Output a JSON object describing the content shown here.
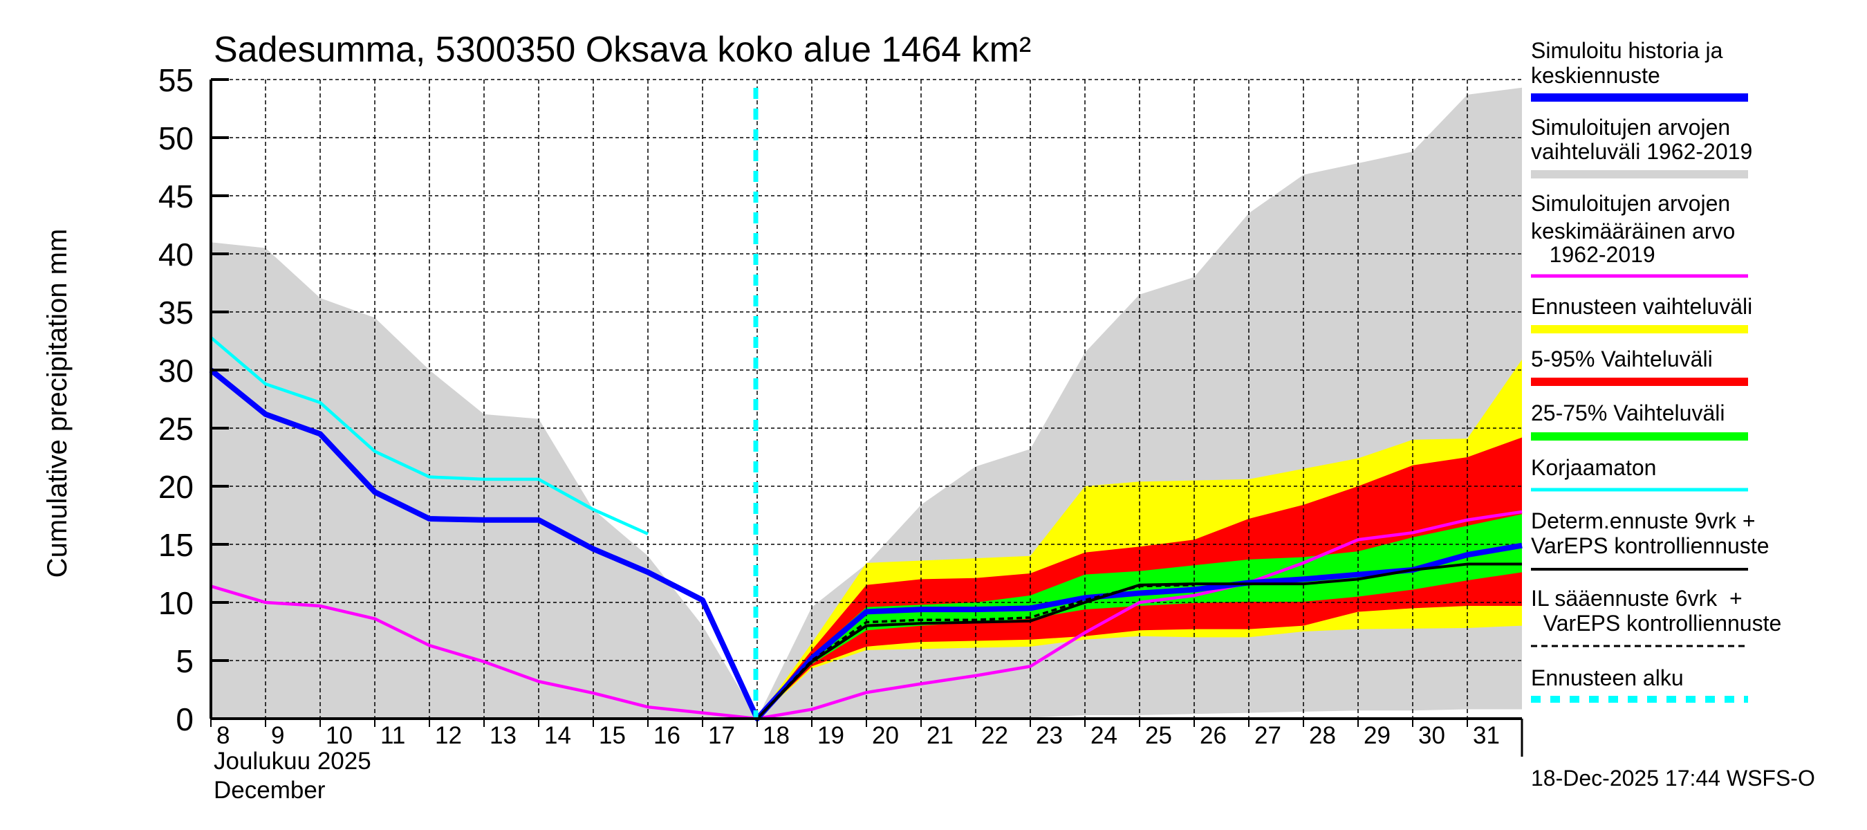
{
  "chart_data": {
    "type": "area",
    "title": "Sadesumma, 5300350 Oksava koko alue 1464 km²",
    "ylabel": "Cumulative precipitation   mm",
    "xlabel_lines": [
      "Joulukuu  2025",
      "December"
    ],
    "ylim": [
      0,
      55
    ],
    "xlim": [
      8,
      32
    ],
    "grid": true,
    "legend_position": "right",
    "yticks": [
      {
        "v": 0,
        "label": "0"
      },
      {
        "v": 5,
        "label": "5"
      },
      {
        "v": 10,
        "label": "10"
      },
      {
        "v": 15,
        "label": "15"
      },
      {
        "v": 20,
        "label": "20"
      },
      {
        "v": 25,
        "label": "25"
      },
      {
        "v": 30,
        "label": "30"
      },
      {
        "v": 35,
        "label": "35"
      },
      {
        "v": 40,
        "label": "40"
      },
      {
        "v": 45,
        "label": "45"
      },
      {
        "v": 50,
        "label": "50"
      },
      {
        "v": 55,
        "label": "55"
      }
    ],
    "xticks": [
      {
        "v": 8,
        "label": "8"
      },
      {
        "v": 9,
        "label": "9"
      },
      {
        "v": 10,
        "label": "10"
      },
      {
        "v": 11,
        "label": "11"
      },
      {
        "v": 12,
        "label": "12"
      },
      {
        "v": 13,
        "label": "13"
      },
      {
        "v": 14,
        "label": "14"
      },
      {
        "v": 15,
        "label": "15"
      },
      {
        "v": 16,
        "label": "16"
      },
      {
        "v": 17,
        "label": "17"
      },
      {
        "v": 18,
        "label": "18"
      },
      {
        "v": 19,
        "label": "19"
      },
      {
        "v": 20,
        "label": "20"
      },
      {
        "v": 21,
        "label": "21"
      },
      {
        "v": 22,
        "label": "22"
      },
      {
        "v": 23,
        "label": "23"
      },
      {
        "v": 24,
        "label": "24"
      },
      {
        "v": 25,
        "label": "25"
      },
      {
        "v": 26,
        "label": "26"
      },
      {
        "v": 27,
        "label": "27"
      },
      {
        "v": 28,
        "label": "28"
      },
      {
        "v": 29,
        "label": "29"
      },
      {
        "v": 30,
        "label": "30"
      },
      {
        "v": 31,
        "label": "31"
      }
    ],
    "forecast_start": 18,
    "bands": [
      {
        "name": "Simuloitujen arvojen vaihteluväli 1962-2019",
        "color": "#d3d3d3",
        "x": [
          8,
          9,
          10,
          11,
          12,
          13,
          14,
          15,
          16,
          17,
          18,
          19,
          20,
          21,
          22,
          23,
          24,
          25,
          26,
          27,
          28,
          29,
          30,
          31,
          32
        ],
        "upper": [
          41,
          40.5,
          36.2,
          34.5,
          30,
          26.2,
          25.8,
          18,
          14,
          8,
          0,
          9.6,
          13.3,
          18.4,
          21.7,
          23.2,
          31.5,
          36.5,
          38,
          43.5,
          46.8,
          47.8,
          48.8,
          53.7,
          54.3
        ],
        "lower": [
          0,
          0,
          0,
          0,
          0,
          0,
          0,
          0,
          0,
          0,
          0,
          0,
          0,
          0,
          0,
          0.1,
          0.3,
          0.3,
          0.4,
          0.5,
          0.6,
          0.7,
          0.7,
          0.8,
          0.8
        ]
      },
      {
        "name": "Ennusteen vaihteluväli",
        "color": "#ffff00",
        "x": [
          18,
          19,
          20,
          21,
          22,
          23,
          24,
          25,
          26,
          27,
          28,
          29,
          30,
          31,
          32
        ],
        "upper": [
          0,
          6.5,
          13.4,
          13.6,
          13.8,
          14,
          20,
          20.4,
          20.5,
          20.6,
          21.5,
          22.4,
          24,
          24.1,
          30.9
        ],
        "lower": [
          0,
          4.3,
          5.9,
          6.0,
          6.1,
          6.2,
          6.8,
          7.1,
          7.0,
          7.0,
          7.5,
          7.7,
          7.75,
          7.8,
          8.0
        ]
      },
      {
        "name": "5-95% Vaihteluväli",
        "color": "#ff0000",
        "x": [
          18,
          19,
          20,
          21,
          22,
          23,
          24,
          25,
          26,
          27,
          28,
          29,
          30,
          31,
          32
        ],
        "upper": [
          0,
          5.9,
          11.5,
          12,
          12.1,
          12.5,
          14.3,
          14.8,
          15.4,
          17.2,
          18.4,
          20,
          21.8,
          22.5,
          24.2
        ],
        "lower": [
          0,
          4.5,
          6.2,
          6.6,
          6.7,
          6.8,
          7.1,
          7.6,
          7.7,
          7.7,
          8.0,
          9.2,
          9.5,
          9.7,
          9.7
        ]
      },
      {
        "name": "25-75% Vaihteluväli",
        "color": "#00ff00",
        "x": [
          18,
          19,
          20,
          21,
          22,
          23,
          24,
          25,
          26,
          27,
          28,
          29,
          30,
          31,
          32
        ],
        "upper": [
          0,
          5.4,
          9.6,
          9.8,
          10,
          10.6,
          12.4,
          12.7,
          13.2,
          13.7,
          13.9,
          14.4,
          15.6,
          16.6,
          17.6
        ],
        "lower": [
          0,
          4.7,
          7.6,
          8.0,
          8.3,
          8.6,
          9.4,
          9.7,
          9.95,
          10.06,
          10.06,
          10.5,
          11.1,
          11.9,
          12.6
        ]
      }
    ],
    "lines": [
      {
        "name": "Simuloitujen arvojen keskimääräinen arvo 1962-2019",
        "color": "#ff00ff",
        "x": [
          8,
          9,
          10,
          11,
          12,
          13,
          14,
          15,
          16,
          17,
          18,
          19,
          20,
          21,
          22,
          23,
          24,
          25,
          26,
          27,
          28,
          29,
          30,
          31,
          32
        ],
        "y": [
          11.4,
          10,
          9.7,
          8.6,
          6.3,
          4.9,
          3.2,
          2.2,
          1,
          0.5,
          0,
          0.8,
          2.25,
          3.0,
          3.7,
          4.5,
          7.4,
          10.0,
          10.6,
          11.7,
          13.4,
          15.4,
          16.0,
          17.1,
          17.8
        ]
      },
      {
        "name": "Korjaamaton",
        "color": "#00ffff",
        "x": [
          8,
          9,
          10,
          11,
          12,
          13,
          14,
          15,
          16
        ],
        "y": [
          32.8,
          28.8,
          27.2,
          23,
          20.8,
          20.6,
          20.6,
          18,
          15.9
        ]
      },
      {
        "name": "Simuloitu historia ja keskiennuste",
        "color": "#0000ff",
        "x": [
          8,
          9,
          10,
          11,
          12,
          13,
          14,
          15,
          16,
          17,
          18,
          19,
          20,
          21,
          22,
          23,
          24,
          25,
          26,
          27,
          28,
          29,
          30,
          31,
          32
        ],
        "y": [
          30,
          26.2,
          24.5,
          19.5,
          17.2,
          17.1,
          17.1,
          14.6,
          12.6,
          10.2,
          0,
          5.2,
          9.2,
          9.4,
          9.4,
          9.5,
          10.4,
          10.8,
          11.1,
          11.7,
          12.0,
          12.4,
          12.8,
          14.1,
          14.9
        ]
      },
      {
        "name": "Determ.ennuste 9vrk + VarEPS kontrolliennuste",
        "color": "#000000",
        "x": [
          18,
          19,
          20,
          21,
          22,
          23,
          24,
          25,
          26,
          27,
          28,
          29,
          30,
          31,
          32
        ],
        "y": [
          0,
          4.9,
          8.0,
          8.2,
          8.3,
          8.4,
          10.0,
          11.5,
          11.6,
          11.6,
          11.6,
          12,
          12.8,
          13.3,
          13.3
        ]
      },
      {
        "name": "IL sääennuste 6vrk + VarEPS kontrolliennuste",
        "color": "#000000",
        "dashed": true,
        "x": [
          18,
          19,
          20,
          21,
          22,
          23,
          24,
          25,
          26
        ],
        "y": [
          0,
          5.0,
          8.3,
          8.5,
          8.5,
          8.7,
          10.2,
          11.4,
          11.5
        ]
      }
    ],
    "legend": [
      {
        "lines": [
          "Simuloitu historia ja",
          "keskiennuste"
        ],
        "color": "#0000ff",
        "style": "thick"
      },
      {
        "lines": [
          "Simuloitujen arvojen",
          "vaihteluväli 1962-2019"
        ],
        "color": "#d3d3d3",
        "style": "band"
      },
      {
        "lines": [
          "Simuloitujen arvojen",
          "keskimääräinen arvo",
          "   1962-2019"
        ],
        "color": "#ff00ff",
        "style": "thin"
      },
      {
        "lines": [
          "Ennusteen vaihteluväli"
        ],
        "color": "#ffff00",
        "style": "band"
      },
      {
        "lines": [
          "5-95% Vaihteluväli"
        ],
        "color": "#ff0000",
        "style": "band"
      },
      {
        "lines": [
          "25-75% Vaihteluväli"
        ],
        "color": "#00ff00",
        "style": "band"
      },
      {
        "lines": [
          "Korjaamaton"
        ],
        "color": "#00ffff",
        "style": "thin"
      },
      {
        "lines": [
          "Determ.ennuste 9vrk +",
          "VarEPS kontrolliennuste"
        ],
        "color": "#000000",
        "style": "line"
      },
      {
        "lines": [
          "IL sääennuste 6vrk  +",
          "  VarEPS kontrolliennuste"
        ],
        "color": "#000000",
        "style": "dashed"
      },
      {
        "lines": [
          "Ennusteen alku"
        ],
        "color": "#00ffff",
        "style": "dotted"
      }
    ],
    "timestamp": "18-Dec-2025 17:44 WSFS-O"
  }
}
